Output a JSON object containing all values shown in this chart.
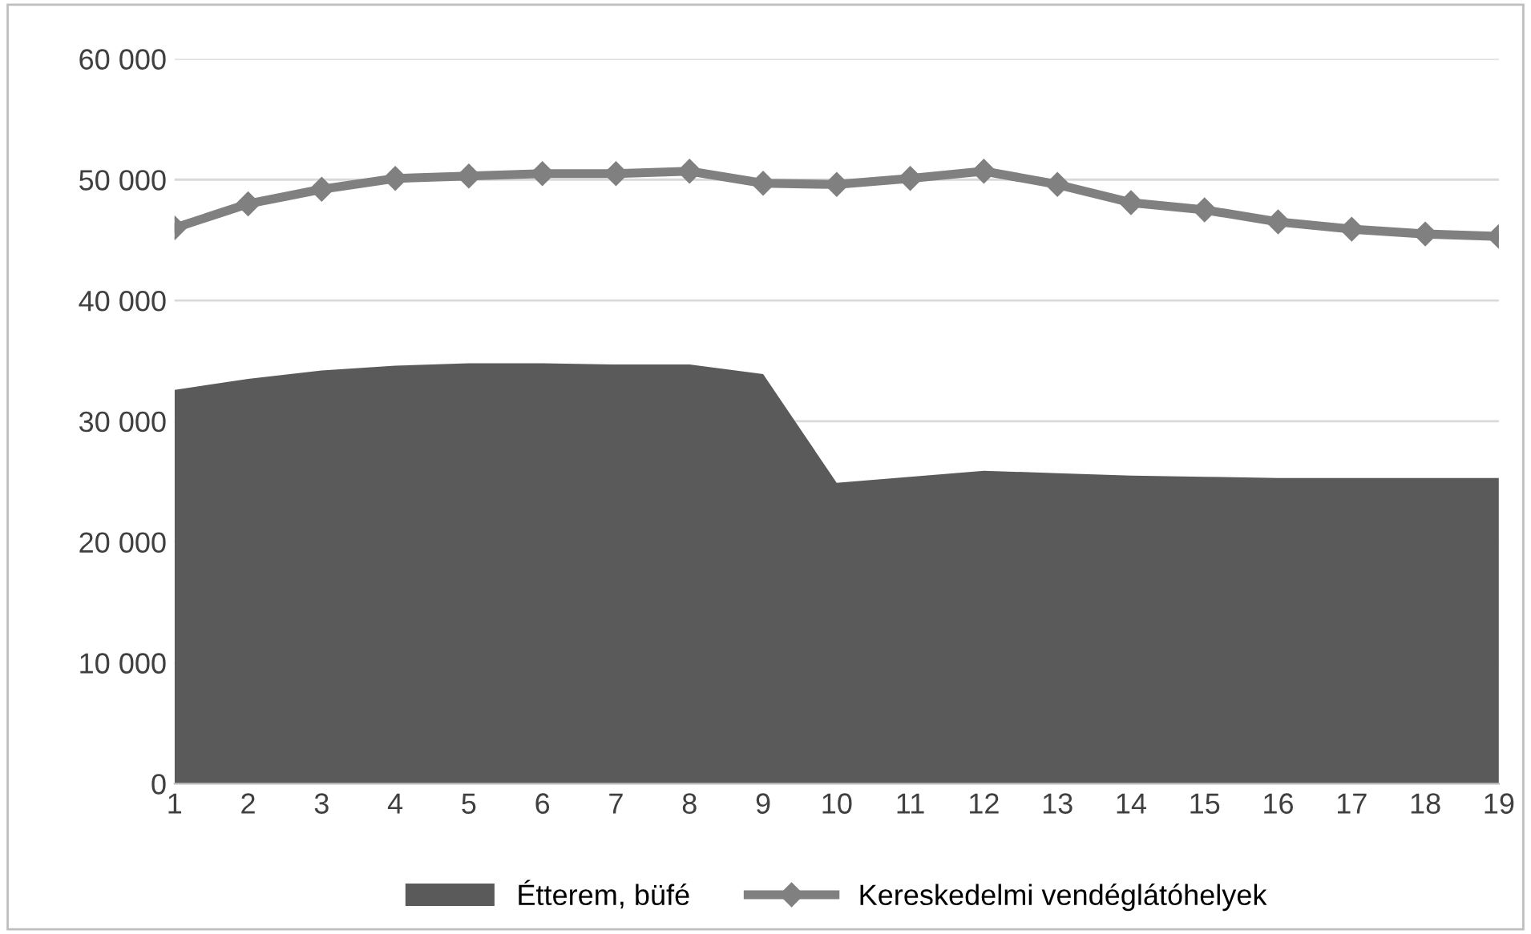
{
  "chart_data": {
    "type": "area",
    "categories": [
      "1",
      "2",
      "3",
      "4",
      "5",
      "6",
      "7",
      "8",
      "9",
      "10",
      "11",
      "12",
      "13",
      "14",
      "15",
      "16",
      "17",
      "18",
      "19"
    ],
    "series": [
      {
        "name": "Étterem, büfé",
        "color": "#5a5a5a",
        "values": [
          32600,
          33500,
          34200,
          34600,
          34800,
          34800,
          34700,
          34700,
          33900,
          24900,
          25400,
          25900,
          25700,
          25500,
          25400,
          25300,
          25300,
          25300,
          25300
        ]
      },
      {
        "name": "Kereskedelmi vendéglátóhelyek",
        "type": "line",
        "color": "#808080",
        "marker": "diamond",
        "values": [
          46000,
          48000,
          49200,
          50100,
          50300,
          50500,
          50500,
          50700,
          49700,
          49600,
          50100,
          50700,
          49600,
          48100,
          47500,
          46500,
          45900,
          45500,
          45300
        ]
      }
    ],
    "ylim": [
      0,
      60000
    ],
    "yticks": [
      {
        "value": 0,
        "label": "0"
      },
      {
        "value": 10000,
        "label": "10 000"
      },
      {
        "value": 20000,
        "label": "20 000"
      },
      {
        "value": 30000,
        "label": "30 000"
      },
      {
        "value": 40000,
        "label": "40 000"
      },
      {
        "value": 50000,
        "label": "50 000"
      },
      {
        "value": 60000,
        "label": "60 000"
      }
    ],
    "grid": "y",
    "legend": "bottom"
  }
}
